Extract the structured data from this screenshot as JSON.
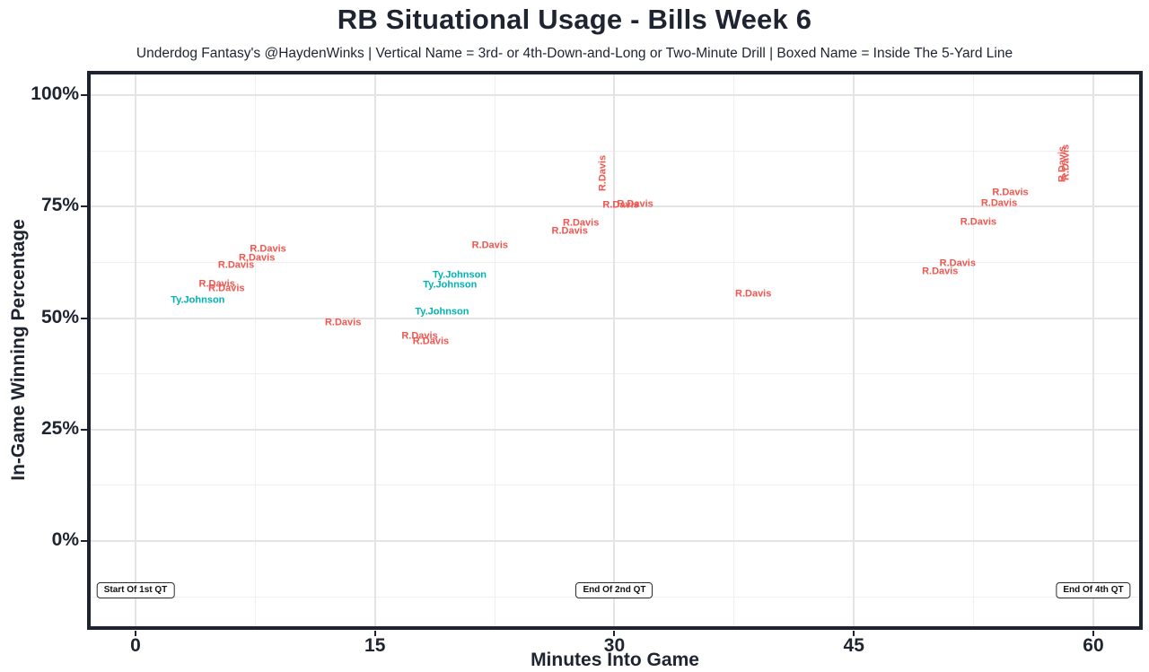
{
  "header": {
    "title": "RB Situational Usage - Bills Week 6",
    "subtitle": "Underdog Fantasy's @HaydenWinks | Vertical Name = 3rd- or 4th-Down-and-Long or Two-Minute Drill | Boxed Name = Inside The 5-Yard Line"
  },
  "colors": {
    "r_davis": "#F0564F",
    "ty_johnson": "#00B2B2",
    "axis_text": "#1E2430",
    "panel_border": "#1D2330",
    "grid_major": "#E4E4E4",
    "grid_minor": "#EFEFEF"
  },
  "chart_data": {
    "type": "scatter",
    "title": "RB Situational Usage - Bills Week 6",
    "subtitle": "Underdog Fantasy's @HaydenWinks | Vertical Name = 3rd- or 4th-Down-and-Long or Two-Minute Drill | Boxed Name = Inside The 5-Yard Line",
    "xlabel": "Minutes Into Game",
    "ylabel": "In-Game Winning Percentage",
    "xlim": [
      -3,
      63
    ],
    "ylim": [
      -20,
      105
    ],
    "xticks": [
      0,
      15,
      30,
      45,
      60
    ],
    "yticks": [
      0,
      25,
      50,
      75,
      100
    ],
    "ytick_labels": [
      "0%",
      "25%",
      "50%",
      "75%",
      "100%"
    ],
    "grid": "major and minor gridlines, white background",
    "legend": "none",
    "point_style": "text labels of player names, rotated=true means 3rd/4th-down-and-long or two-minute drill",
    "series": [
      {
        "name": "R.Davis",
        "color": "#F0564F",
        "points": [
          {
            "x": 8.3,
            "y": 65.4,
            "rotated": false
          },
          {
            "x": 7.6,
            "y": 63.4,
            "rotated": false
          },
          {
            "x": 6.3,
            "y": 61.8,
            "rotated": false
          },
          {
            "x": 5.1,
            "y": 57.5,
            "rotated": false
          },
          {
            "x": 5.7,
            "y": 56.5,
            "rotated": false
          },
          {
            "x": 13.0,
            "y": 48.9,
            "rotated": false
          },
          {
            "x": 22.2,
            "y": 66.2,
            "rotated": false
          },
          {
            "x": 17.8,
            "y": 45.9,
            "rotated": false
          },
          {
            "x": 18.5,
            "y": 44.7,
            "rotated": false
          },
          {
            "x": 29.3,
            "y": 82.5,
            "rotated": true
          },
          {
            "x": 30.4,
            "y": 75.2,
            "rotated": false
          },
          {
            "x": 31.3,
            "y": 75.4,
            "rotated": false
          },
          {
            "x": 27.9,
            "y": 71.2,
            "rotated": false
          },
          {
            "x": 27.2,
            "y": 69.5,
            "rotated": false
          },
          {
            "x": 38.7,
            "y": 55.3,
            "rotated": false
          },
          {
            "x": 58.1,
            "y": 84.5,
            "rotated": true
          },
          {
            "x": 58.3,
            "y": 84.9,
            "rotated": true
          },
          {
            "x": 54.8,
            "y": 78.1,
            "rotated": false
          },
          {
            "x": 54.1,
            "y": 75.7,
            "rotated": false
          },
          {
            "x": 52.8,
            "y": 71.4,
            "rotated": false
          },
          {
            "x": 51.5,
            "y": 62.2,
            "rotated": false
          },
          {
            "x": 50.4,
            "y": 60.4,
            "rotated": false
          }
        ]
      },
      {
        "name": "Ty.Johnson",
        "color": "#00B2B2",
        "points": [
          {
            "x": 3.9,
            "y": 53.9,
            "rotated": false
          },
          {
            "x": 20.3,
            "y": 59.6,
            "rotated": false
          },
          {
            "x": 19.7,
            "y": 57.3,
            "rotated": false
          },
          {
            "x": 19.2,
            "y": 51.3,
            "rotated": false
          }
        ]
      }
    ],
    "annotations": [
      {
        "text": "Start Of 1st QT",
        "x": 0,
        "y": -11
      },
      {
        "text": "End Of 2nd QT",
        "x": 30,
        "y": -11
      },
      {
        "text": "End Of 4th QT",
        "x": 60,
        "y": -11
      }
    ]
  }
}
